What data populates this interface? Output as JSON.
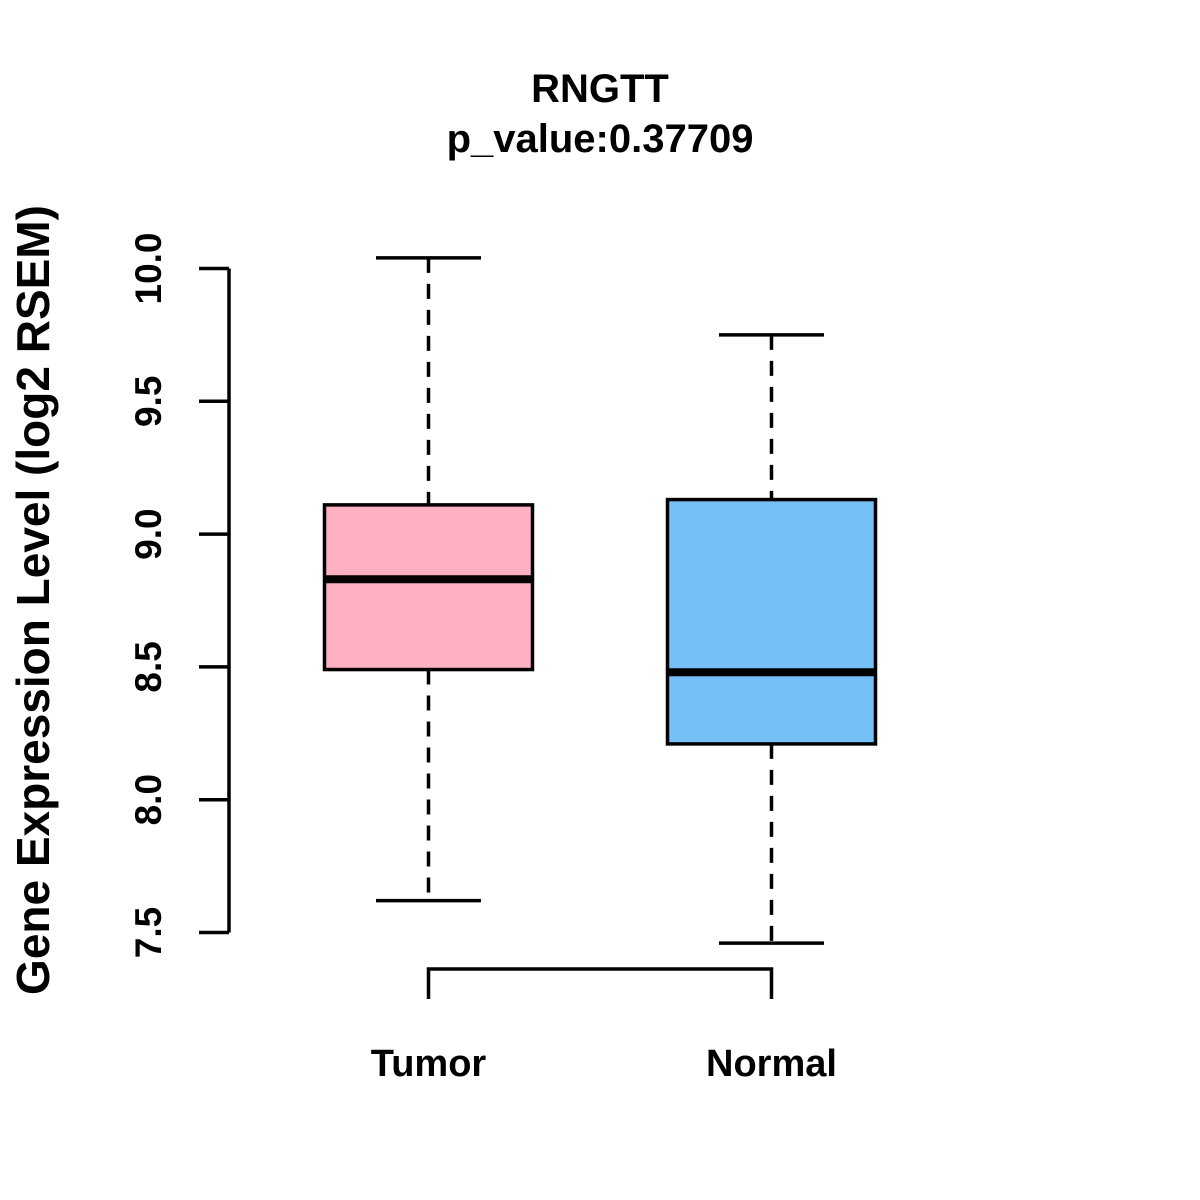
{
  "title": "RNGTT",
  "subtitle": "p_value:0.37709",
  "ylabel": "Gene Expression Level (log2 RSEM)",
  "chart_data": {
    "type": "boxplot",
    "categories": [
      "Tumor",
      "Normal"
    ],
    "series": [
      {
        "name": "Tumor",
        "min": 7.62,
        "q1": 8.49,
        "median": 8.83,
        "q3": 9.11,
        "max": 10.04,
        "fill": "#FFB0C3"
      },
      {
        "name": "Normal",
        "min": 7.46,
        "q1": 8.21,
        "median": 8.48,
        "q3": 9.13,
        "max": 9.75,
        "fill": "#75BFF7"
      }
    ],
    "yticks": [
      {
        "value": 7.5,
        "label": "7.5"
      },
      {
        "value": 8.0,
        "label": "8.0"
      },
      {
        "value": 8.5,
        "label": "8.5"
      },
      {
        "value": 9.0,
        "label": "9.0"
      },
      {
        "value": 9.5,
        "label": "9.5"
      },
      {
        "value": 10.0,
        "label": "10.0"
      }
    ],
    "axis_value_range": [
      7.5,
      10.0
    ],
    "ylim": [
      7.35,
      10.1
    ],
    "grid": false,
    "legend": false,
    "whisker_style": "dashed",
    "box_edge_color": "#000000",
    "median_color": "#000000",
    "comparison_bracket": {
      "between": [
        "Tumor",
        "Normal"
      ]
    }
  }
}
